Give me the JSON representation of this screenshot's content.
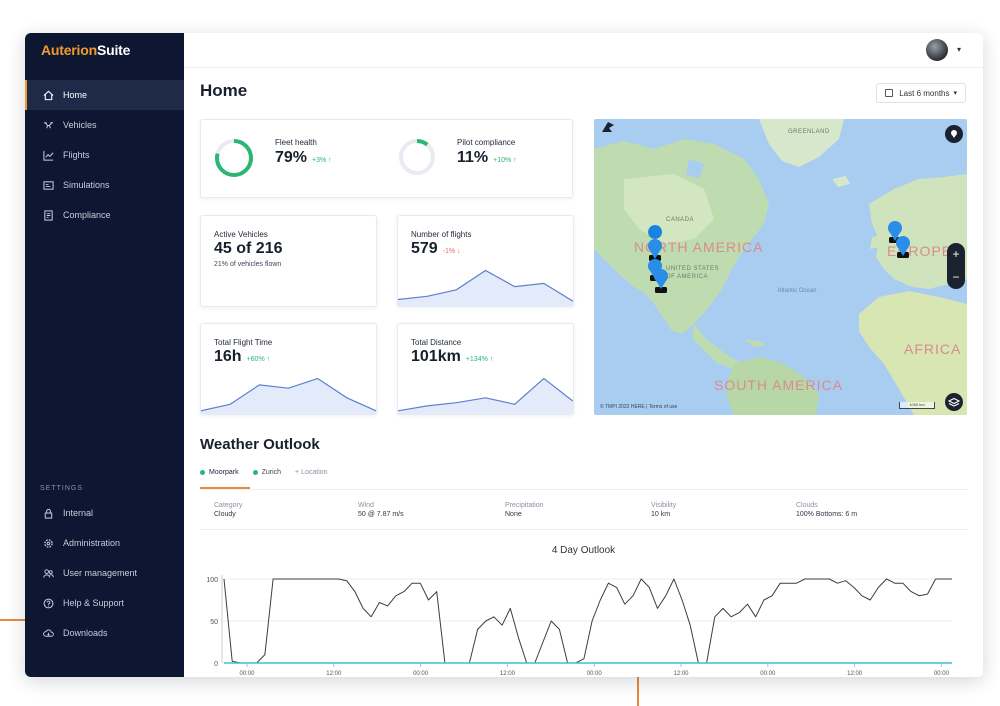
{
  "brand": {
    "part1": "Auterion",
    "part2": "Suite"
  },
  "sidebar": {
    "items": [
      {
        "label": "Home",
        "icon": "home-icon",
        "active": true
      },
      {
        "label": "Vehicles",
        "icon": "drone-icon",
        "active": false
      },
      {
        "label": "Flights",
        "icon": "flights-icon",
        "active": false
      },
      {
        "label": "Simulations",
        "icon": "simulation-icon",
        "active": false
      },
      {
        "label": "Compliance",
        "icon": "compliance-icon",
        "active": false
      }
    ],
    "settings_label": "SETTINGS",
    "settings_items": [
      {
        "label": "Internal",
        "icon": "lock-icon"
      },
      {
        "label": "Administration",
        "icon": "gear-icon"
      },
      {
        "label": "User management",
        "icon": "users-icon"
      },
      {
        "label": "Help & Support",
        "icon": "help-icon"
      },
      {
        "label": "Downloads",
        "icon": "cloud-download-icon"
      }
    ]
  },
  "header": {
    "title": "Home",
    "range_label": "Last 6 months"
  },
  "kpis": {
    "fleet_health": {
      "label": "Fleet health",
      "value": "79%",
      "delta": "+3% ↑",
      "progress": 0.79,
      "color": "#2bb673"
    },
    "pilot_compliance": {
      "label": "Pilot compliance",
      "value": "11%",
      "delta": "+10% ↑",
      "progress": 0.11,
      "color": "#2bb673"
    },
    "active_vehicles": {
      "label": "Active Vehicles",
      "value": "45 of 216",
      "sub": "21% of vehicles flown"
    },
    "number_of_flights": {
      "label": "Number of flights",
      "value": "579",
      "delta": "-1% ↓",
      "spark": [
        4,
        6,
        10,
        22,
        12,
        14,
        3
      ]
    },
    "total_flight_time": {
      "label": "Total Flight Time",
      "value": "16h",
      "delta": "+60% ↑",
      "spark": [
        2,
        6,
        18,
        16,
        22,
        10,
        2
      ]
    },
    "total_distance": {
      "label": "Total Distance",
      "value": "101km",
      "delta": "+134% ↑",
      "spark": [
        2,
        5,
        7,
        10,
        6,
        22,
        8
      ]
    }
  },
  "map": {
    "regions": [
      "NORTH AMERICA",
      "EUROPE",
      "AFRICA",
      "SOUTH AMERICA"
    ],
    "labels": [
      "GREENLAND",
      "CANADA",
      "UNITED STATES OF AMERICA",
      "Atlantic Ocean"
    ],
    "attribution": "© TMPI 2022 HERE | Terms of use",
    "scale": "1000 km"
  },
  "weather": {
    "title": "Weather Outlook",
    "tabs": [
      "Moorpark",
      "Zurich",
      "+ Location"
    ],
    "columns": [
      {
        "header": "Category",
        "value": "Cloudy"
      },
      {
        "header": "Wind",
        "value": "50 @ 7.87 m/s"
      },
      {
        "header": "Precipitation",
        "value": "None"
      },
      {
        "header": "Visibility",
        "value": "10 km"
      },
      {
        "header": "Clouds",
        "value": "100% Bottoms: 6 m"
      }
    ],
    "chart_title": "4 Day Outlook"
  },
  "chart_data": {
    "type": "line",
    "title": "4 Day Outlook",
    "x_tick_labels": [
      "00:00",
      "12:00",
      "00:00",
      "12:00",
      "00:00",
      "12:00",
      "00:00",
      "12:00",
      "00:00"
    ],
    "y_tick_labels": [
      "100",
      "50",
      "0"
    ],
    "ylim": [
      0,
      100
    ],
    "series": [
      {
        "values": [
          100,
          2,
          0,
          0,
          0,
          10,
          100,
          100,
          100,
          100,
          100,
          100,
          100,
          100,
          100,
          98,
          85,
          65,
          55,
          72,
          68,
          80,
          85,
          95,
          95,
          75,
          85,
          0,
          0,
          0,
          0,
          40,
          50,
          55,
          45,
          65,
          30,
          0,
          0,
          25,
          50,
          40,
          0,
          0,
          5,
          50,
          75,
          95,
          90,
          70,
          80,
          100,
          90,
          65,
          80,
          100,
          75,
          45,
          0,
          0,
          55,
          65,
          55,
          60,
          70,
          55,
          75,
          80,
          95,
          95,
          95,
          100,
          100,
          100,
          100,
          95,
          98,
          90,
          80,
          75,
          90,
          100,
          95,
          95,
          85,
          80,
          82,
          100,
          100,
          100
        ]
      },
      {
        "values": [
          0,
          0,
          0,
          0,
          0,
          0,
          0,
          0,
          0,
          0,
          0,
          0,
          0,
          0,
          0,
          0,
          0,
          0,
          0,
          0,
          0,
          0,
          0,
          0,
          0,
          0,
          0,
          0,
          0,
          0,
          0,
          0,
          0,
          0,
          0,
          0,
          0,
          0,
          0,
          0,
          0,
          0,
          0,
          0,
          0,
          0,
          0,
          0,
          0,
          0,
          0,
          0,
          0,
          0,
          0,
          0,
          0,
          0,
          0,
          0,
          0,
          0,
          0,
          0,
          0,
          0,
          0,
          0,
          0,
          0,
          0,
          0,
          0,
          0,
          0,
          0,
          0,
          0,
          0,
          0,
          0,
          0,
          0,
          0,
          0,
          0,
          0,
          0,
          0,
          0
        ]
      }
    ],
    "colors": [
      "#3d3d3d",
      "#3fc1cf"
    ]
  }
}
